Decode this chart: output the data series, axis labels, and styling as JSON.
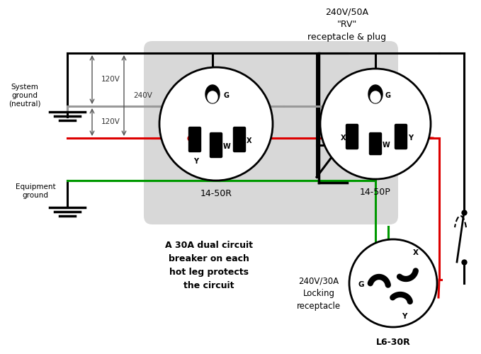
{
  "bg_color": "#ffffff",
  "title": "240V/50A\n\"RV\"\nreceptacle & plug",
  "wire_colors": {
    "black": "#000000",
    "gray": "#999999",
    "red": "#dd0000",
    "green": "#009900"
  },
  "label_system_ground": "System\nground\n(neutral)",
  "label_equipment_ground": "Equipment\nground",
  "label_14_50R": "14-50R",
  "label_14_50P": "14-50P",
  "label_L6_30R": "L6-30R",
  "label_30A": "A 30A dual circuit\nbreaker on each\nhot leg protects\nthe circuit",
  "label_240_30A": "240V/30A\nLocking\nreceptacle"
}
